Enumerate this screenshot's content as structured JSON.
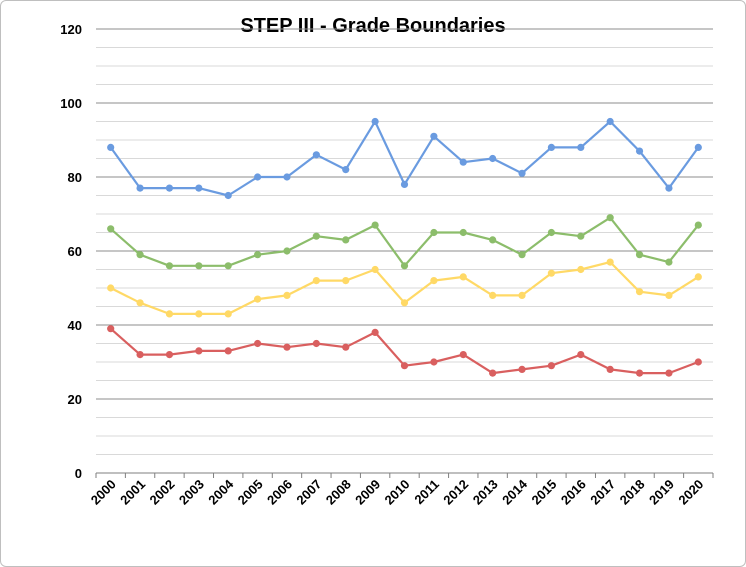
{
  "chart_data": {
    "type": "line",
    "title": "STEP III - Grade Boundaries",
    "xlabel": "",
    "ylabel": "",
    "ylim": [
      0,
      120
    ],
    "yticks": [
      0,
      20,
      40,
      60,
      80,
      100,
      120
    ],
    "minor_grid_step": 5,
    "grid": true,
    "legend": "none",
    "categories": [
      "2000",
      "2001",
      "2002",
      "2003",
      "2004",
      "2005",
      "2006",
      "2007",
      "2008",
      "2009",
      "2010",
      "2011",
      "2012",
      "2013",
      "2014",
      "2015",
      "2016",
      "2017",
      "2018",
      "2019",
      "2020"
    ],
    "series": [
      {
        "color": "#6a9be0",
        "values": [
          88,
          77,
          77,
          77,
          75,
          80,
          80,
          86,
          82,
          95,
          78,
          91,
          84,
          85,
          81,
          88,
          88,
          95,
          87,
          77,
          88
        ]
      },
      {
        "color": "#8cbd6b",
        "values": [
          66,
          59,
          56,
          56,
          56,
          59,
          60,
          64,
          63,
          67,
          56,
          65,
          65,
          63,
          59,
          65,
          64,
          69,
          59,
          57,
          67
        ]
      },
      {
        "color": "#ffd966",
        "values": [
          50,
          46,
          43,
          43,
          43,
          47,
          48,
          52,
          52,
          55,
          46,
          52,
          53,
          48,
          48,
          54,
          55,
          57,
          49,
          48,
          53
        ]
      },
      {
        "color": "#d95f5f",
        "values": [
          39,
          32,
          32,
          33,
          33,
          35,
          34,
          35,
          34,
          38,
          29,
          30,
          32,
          27,
          28,
          29,
          32,
          28,
          27,
          27,
          30
        ]
      }
    ]
  }
}
